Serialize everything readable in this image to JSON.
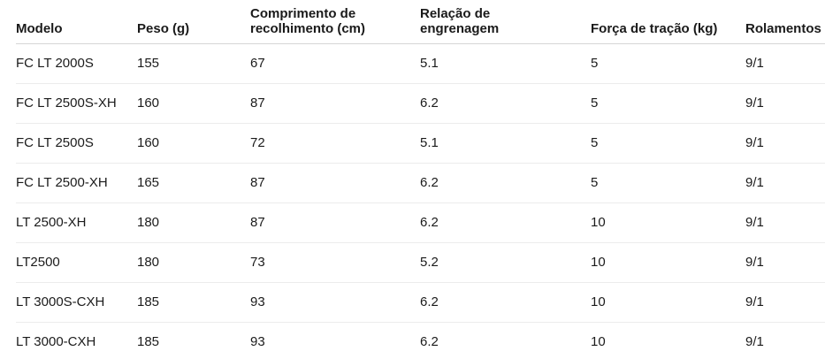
{
  "colors": {
    "background": "#ffffff",
    "text": "#1b1b1b",
    "header_text": "#1a1a1a",
    "header_divider": "#d5d5d5",
    "row_divider": "#ececec"
  },
  "table": {
    "column_keys": [
      "modelo",
      "peso",
      "comprimento",
      "relacao",
      "forca",
      "rolamentos"
    ],
    "columns": [
      "Modelo",
      "Peso (g)",
      "Comprimento de\nrecolhimento (cm)",
      "Relação de\nengrenagem",
      "Força de tração (kg)",
      "Rolamentos"
    ],
    "rows": [
      [
        "FC LT 2000S",
        "155",
        "67",
        "5.1",
        "5",
        "9/1"
      ],
      [
        "FC LT 2500S-XH",
        "160",
        "87",
        "6.2",
        "5",
        "9/1"
      ],
      [
        "FC LT 2500S",
        "160",
        "72",
        "5.1",
        "5",
        "9/1"
      ],
      [
        "FC LT 2500-XH",
        "165",
        "87",
        "6.2",
        "5",
        "9/1"
      ],
      [
        "LT 2500-XH",
        "180",
        "87",
        "6.2",
        "10",
        "9/1"
      ],
      [
        "LT2500",
        "180",
        "73",
        "5.2",
        "10",
        "9/1"
      ],
      [
        "LT 3000S-CXH",
        "185",
        "93",
        "6.2",
        "10",
        "9/1"
      ],
      [
        "LT 3000-CXH",
        "185",
        "93",
        "6.2",
        "10",
        "9/1"
      ]
    ]
  }
}
